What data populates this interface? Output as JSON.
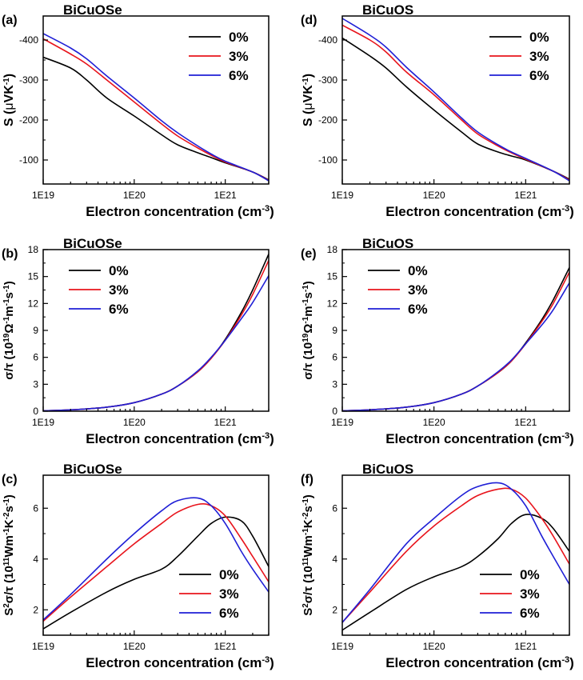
{
  "colors": {
    "0%": "#000000",
    "3%": "#e8141c",
    "6%": "#1f1fd6"
  },
  "chart_data": [
    {
      "id": "a",
      "type": "line",
      "panel_label": "(a)",
      "title": "BiCuOSe",
      "xlabel": "Electron concentration",
      "xunit": "(cm",
      "xunit_sup": "-3",
      "xunit_end": ")",
      "ylabel_main": "S (",
      "ylabel_mu": "μ",
      "ylabel_unit": "VK",
      "ylabel_sup": "-1",
      "ylabel_end": ")",
      "xscale": "log",
      "xlim": [
        1e+19,
        3e+21
      ],
      "xticks": [
        {
          "v": 1e+19,
          "label": "1E19"
        },
        {
          "v": 1e+20,
          "label": "1E20"
        },
        {
          "v": 1e+21,
          "label": "1E21"
        }
      ],
      "ylim": [
        -40,
        -460
      ],
      "yticks": [
        {
          "v": -100,
          "label": "-100"
        },
        {
          "v": -200,
          "label": "-200"
        },
        {
          "v": -300,
          "label": "-300"
        },
        {
          "v": -400,
          "label": "-400"
        }
      ],
      "legend_position": "top-right",
      "series": [
        {
          "name": "0%",
          "x": [
            1e+19,
            2e+19,
            3e+19,
            5e+19,
            1e+20,
            2e+20,
            3e+20,
            5e+20,
            7e+20,
            1e+21,
            2e+21,
            3e+21
          ],
          "y": [
            -357,
            -330,
            -300,
            -255,
            -210,
            -163,
            -138,
            -118,
            -106,
            -93,
            -70,
            -50
          ]
        },
        {
          "name": "3%",
          "x": [
            1e+19,
            2e+19,
            3e+19,
            5e+19,
            1e+20,
            2e+20,
            3e+20,
            5e+20,
            7e+20,
            1e+21,
            2e+21,
            3e+21
          ],
          "y": [
            -403,
            -365,
            -340,
            -300,
            -245,
            -190,
            -160,
            -130,
            -112,
            -95,
            -70,
            -49
          ]
        },
        {
          "name": "6%",
          "x": [
            1e+19,
            2e+19,
            3e+19,
            5e+19,
            1e+20,
            2e+20,
            3e+20,
            5e+20,
            7e+20,
            1e+21,
            2e+21,
            3e+21
          ],
          "y": [
            -416,
            -380,
            -353,
            -310,
            -255,
            -198,
            -168,
            -135,
            -115,
            -97,
            -70,
            -48
          ]
        }
      ]
    },
    {
      "id": "d",
      "type": "line",
      "panel_label": "(d)",
      "title": "BiCuOS",
      "xlabel": "Electron concentration",
      "xunit": "(cm",
      "xunit_sup": "-3",
      "xunit_end": ")",
      "ylabel_main": "S (",
      "ylabel_mu": "μ",
      "ylabel_unit": "VK",
      "ylabel_sup": "-1",
      "ylabel_end": ")",
      "xscale": "log",
      "xlim": [
        1e+19,
        3e+21
      ],
      "xticks": [
        {
          "v": 1e+19,
          "label": "1E19"
        },
        {
          "v": 1e+20,
          "label": "1E20"
        },
        {
          "v": 1e+21,
          "label": "1E21"
        }
      ],
      "ylim": [
        -40,
        -460
      ],
      "yticks": [
        {
          "v": -100,
          "label": "-100"
        },
        {
          "v": -200,
          "label": "-200"
        },
        {
          "v": -300,
          "label": "-300"
        },
        {
          "v": -400,
          "label": "-400"
        }
      ],
      "legend_position": "top-right",
      "series": [
        {
          "name": "0%",
          "x": [
            1e+19,
            2e+19,
            3e+19,
            5e+19,
            1e+20,
            2e+20,
            3e+20,
            5e+20,
            7e+20,
            1e+21,
            2e+21,
            3e+21
          ],
          "y": [
            -405,
            -360,
            -330,
            -283,
            -225,
            -170,
            -140,
            -120,
            -110,
            -100,
            -72,
            -52
          ]
        },
        {
          "name": "3%",
          "x": [
            1e+19,
            2e+19,
            3e+19,
            5e+19,
            1e+20,
            2e+20,
            3e+20,
            5e+20,
            7e+20,
            1e+21,
            2e+21,
            3e+21
          ],
          "y": [
            -437,
            -400,
            -370,
            -320,
            -263,
            -200,
            -165,
            -135,
            -118,
            -102,
            -72,
            -50
          ]
        },
        {
          "name": "6%",
          "x": [
            1e+19,
            2e+19,
            3e+19,
            5e+19,
            1e+20,
            2e+20,
            3e+20,
            5e+20,
            7e+20,
            1e+21,
            2e+21,
            3e+21
          ],
          "y": [
            -454,
            -412,
            -382,
            -332,
            -270,
            -205,
            -170,
            -138,
            -120,
            -104,
            -72,
            -48
          ]
        }
      ]
    },
    {
      "id": "b",
      "type": "line",
      "panel_label": "(b)",
      "title": "BiCuOSe",
      "xlabel": "Electron concentration",
      "xunit": "(cm",
      "xunit_sup": "-3",
      "xunit_end": ")",
      "ylabel_sigma": "σ/τ (10",
      "ylabel_sup1": "19",
      "ylabel_omega": "Ω",
      "ylabel_sup2": "-1",
      "ylabel_m": "m",
      "ylabel_sup3": "-1",
      "ylabel_s": "s",
      "ylabel_sup4": "-1",
      "ylabel_end": ")",
      "xscale": "log",
      "xlim": [
        1e+19,
        3e+21
      ],
      "xticks": [
        {
          "v": 1e+19,
          "label": "1E19"
        },
        {
          "v": 1e+20,
          "label": "1E20"
        },
        {
          "v": 1e+21,
          "label": "1E21"
        }
      ],
      "ylim": [
        0,
        18
      ],
      "yticks": [
        {
          "v": 0,
          "label": "0"
        },
        {
          "v": 3,
          "label": "3"
        },
        {
          "v": 6,
          "label": "6"
        },
        {
          "v": 9,
          "label": "9"
        },
        {
          "v": 12,
          "label": "12"
        },
        {
          "v": 15,
          "label": "15"
        },
        {
          "v": 18,
          "label": "18"
        }
      ],
      "legend_position": "top-left",
      "series": [
        {
          "name": "0%",
          "x": [
            1e+19,
            2e+19,
            5e+19,
            1e+20,
            2e+20,
            3e+20,
            5e+20,
            7e+20,
            1e+21,
            1.5e+21,
            2e+21,
            3e+21
          ],
          "y": [
            0.05,
            0.15,
            0.45,
            0.95,
            1.9,
            2.8,
            4.4,
            5.9,
            8.0,
            11.0,
            13.5,
            17.5
          ]
        },
        {
          "name": "3%",
          "x": [
            1e+19,
            2e+19,
            5e+19,
            1e+20,
            2e+20,
            3e+20,
            5e+20,
            7e+20,
            1e+21,
            1.5e+21,
            2e+21,
            3e+21
          ],
          "y": [
            0.05,
            0.15,
            0.45,
            0.95,
            1.9,
            2.8,
            4.4,
            5.9,
            7.9,
            10.7,
            13.0,
            16.8
          ]
        },
        {
          "name": "6%",
          "x": [
            1e+19,
            2e+19,
            5e+19,
            1e+20,
            2e+20,
            3e+20,
            5e+20,
            7e+20,
            1e+21,
            1.5e+21,
            2e+21,
            3e+21
          ],
          "y": [
            0.05,
            0.15,
            0.45,
            0.95,
            1.9,
            2.8,
            4.5,
            6.0,
            7.9,
            10.3,
            12.1,
            15.1
          ]
        }
      ]
    },
    {
      "id": "e",
      "type": "line",
      "panel_label": "(e)",
      "title": "BiCuOS",
      "xlabel": "Electron concentration",
      "xunit": "(cm",
      "xunit_sup": "-3",
      "xunit_end": ")",
      "ylabel_sigma": "σ/τ (10",
      "ylabel_sup1": "19",
      "ylabel_omega": "Ω",
      "ylabel_sup2": "-1",
      "ylabel_m": "m",
      "ylabel_sup3": "-1",
      "ylabel_s": "s",
      "ylabel_sup4": "-1",
      "ylabel_end": ")",
      "xscale": "log",
      "xlim": [
        1e+19,
        3e+21
      ],
      "xticks": [
        {
          "v": 1e+19,
          "label": "1E19"
        },
        {
          "v": 1e+20,
          "label": "1E20"
        },
        {
          "v": 1e+21,
          "label": "1E21"
        }
      ],
      "ylim": [
        0,
        18
      ],
      "yticks": [
        {
          "v": 0,
          "label": "0"
        },
        {
          "v": 3,
          "label": "3"
        },
        {
          "v": 6,
          "label": "6"
        },
        {
          "v": 9,
          "label": "9"
        },
        {
          "v": 12,
          "label": "12"
        },
        {
          "v": 15,
          "label": "15"
        },
        {
          "v": 18,
          "label": "18"
        }
      ],
      "legend_position": "top-left",
      "series": [
        {
          "name": "0%",
          "x": [
            1e+19,
            2e+19,
            5e+19,
            1e+20,
            2e+20,
            3e+20,
            5e+20,
            7e+20,
            1e+21,
            1.5e+21,
            2e+21,
            3e+21
          ],
          "y": [
            0.05,
            0.15,
            0.45,
            0.95,
            1.9,
            2.8,
            4.3,
            5.6,
            7.6,
            10.2,
            12.4,
            16.0
          ]
        },
        {
          "name": "3%",
          "x": [
            1e+19,
            2e+19,
            5e+19,
            1e+20,
            2e+20,
            3e+20,
            5e+20,
            7e+20,
            1e+21,
            1.5e+21,
            2e+21,
            3e+21
          ],
          "y": [
            0.05,
            0.15,
            0.45,
            0.95,
            1.9,
            2.8,
            4.3,
            5.6,
            7.5,
            10.0,
            12.0,
            15.5
          ]
        },
        {
          "name": "6%",
          "x": [
            1e+19,
            2e+19,
            5e+19,
            1e+20,
            2e+20,
            3e+20,
            5e+20,
            7e+20,
            1e+21,
            1.5e+21,
            2e+21,
            3e+21
          ],
          "y": [
            0.05,
            0.15,
            0.45,
            0.95,
            1.9,
            2.8,
            4.4,
            5.7,
            7.5,
            9.6,
            11.3,
            14.3
          ]
        }
      ]
    },
    {
      "id": "c",
      "type": "line",
      "panel_label": "(c)",
      "title": "BiCuOSe",
      "xlabel": "Electron concentration",
      "xunit": "(cm",
      "xunit_sup": "-3",
      "xunit_end": ")",
      "ylabel_s": "S",
      "ylabel_sup0": "2",
      "ylabel_sigma": "σ/τ (10",
      "ylabel_sup1": "11",
      "ylabel_w": "Wm",
      "ylabel_sup2": "-1",
      "ylabel_k": "K",
      "ylabel_sup3": "-2",
      "ylabel_sec": "s",
      "ylabel_sup4": "-1",
      "ylabel_end": ")",
      "xscale": "log",
      "xlim": [
        1e+19,
        3e+21
      ],
      "xticks": [
        {
          "v": 1e+19,
          "label": "1E19"
        },
        {
          "v": 1e+20,
          "label": "1E20"
        },
        {
          "v": 1e+21,
          "label": "1E21"
        }
      ],
      "ylim": [
        1.0,
        7.3
      ],
      "yticks": [
        {
          "v": 2,
          "label": "2"
        },
        {
          "v": 4,
          "label": "4"
        },
        {
          "v": 6,
          "label": "6"
        }
      ],
      "legend_position": "bottom-right",
      "series": [
        {
          "name": "0%",
          "x": [
            1e+19,
            2e+19,
            5e+19,
            1e+20,
            2e+20,
            3e+20,
            5e+20,
            7e+20,
            1e+21,
            1.5e+21,
            2e+21,
            3e+21
          ],
          "y": [
            1.25,
            1.9,
            2.7,
            3.2,
            3.6,
            4.1,
            4.9,
            5.4,
            5.65,
            5.5,
            4.9,
            3.7
          ]
        },
        {
          "name": "3%",
          "x": [
            1e+19,
            2e+19,
            5e+19,
            1e+20,
            2e+20,
            3e+20,
            5e+20,
            7e+20,
            1e+21,
            1.5e+21,
            2e+21,
            3e+21
          ],
          "y": [
            1.55,
            2.5,
            3.7,
            4.6,
            5.4,
            5.85,
            6.15,
            6.1,
            5.7,
            4.8,
            4.1,
            3.1
          ]
        },
        {
          "name": "6%",
          "x": [
            1e+19,
            2e+19,
            5e+19,
            1e+20,
            2e+20,
            3e+20,
            5e+20,
            7e+20,
            1e+21,
            1.5e+21,
            2e+21,
            3e+21
          ],
          "y": [
            1.6,
            2.6,
            4.0,
            5.0,
            5.9,
            6.3,
            6.4,
            6.1,
            5.4,
            4.3,
            3.6,
            2.7
          ]
        }
      ]
    },
    {
      "id": "f",
      "type": "line",
      "panel_label": "(f)",
      "title": "BiCuOS",
      "xlabel": "Electron concentration",
      "xunit": "(cm",
      "xunit_sup": "-3",
      "xunit_end": ")",
      "ylabel_s": "S",
      "ylabel_sup0": "2",
      "ylabel_sigma": "σ/τ (10",
      "ylabel_sup1": "11",
      "ylabel_w": "Wm",
      "ylabel_sup2": "-1",
      "ylabel_k": "K",
      "ylabel_sup3": "-2",
      "ylabel_sec": "s",
      "ylabel_sup4": "-1",
      "ylabel_end": ")",
      "xscale": "log",
      "xlim": [
        1e+19,
        3e+21
      ],
      "xticks": [
        {
          "v": 1e+19,
          "label": "1E19"
        },
        {
          "v": 1e+20,
          "label": "1E20"
        },
        {
          "v": 1e+21,
          "label": "1E21"
        }
      ],
      "ylim": [
        1.0,
        7.3
      ],
      "yticks": [
        {
          "v": 2,
          "label": "2"
        },
        {
          "v": 4,
          "label": "4"
        },
        {
          "v": 6,
          "label": "6"
        }
      ],
      "legend_position": "bottom-right",
      "series": [
        {
          "name": "0%",
          "x": [
            1e+19,
            2e+19,
            5e+19,
            1e+20,
            2e+20,
            3e+20,
            5e+20,
            7e+20,
            1e+21,
            1.5e+21,
            2e+21,
            3e+21
          ],
          "y": [
            1.2,
            1.9,
            2.8,
            3.3,
            3.7,
            4.1,
            4.8,
            5.4,
            5.75,
            5.6,
            5.2,
            4.3
          ]
        },
        {
          "name": "3%",
          "x": [
            1e+19,
            2e+19,
            5e+19,
            1e+20,
            2e+20,
            3e+20,
            5e+20,
            7e+20,
            1e+21,
            1.5e+21,
            2e+21,
            3e+21
          ],
          "y": [
            1.5,
            2.7,
            4.3,
            5.3,
            6.1,
            6.5,
            6.75,
            6.75,
            6.4,
            5.6,
            4.9,
            3.8
          ]
        },
        {
          "name": "6%",
          "x": [
            1e+19,
            2e+19,
            5e+19,
            1e+20,
            2e+20,
            3e+20,
            5e+20,
            7e+20,
            1e+21,
            1.5e+21,
            2e+21,
            3e+21
          ],
          "y": [
            1.5,
            2.8,
            4.6,
            5.6,
            6.5,
            6.85,
            7.0,
            6.75,
            6.1,
            4.9,
            4.1,
            3.0
          ]
        }
      ]
    }
  ]
}
